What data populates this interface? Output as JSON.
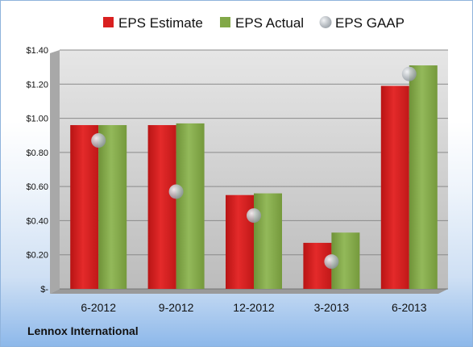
{
  "company": "Lennox International",
  "colors": {
    "estimate": "#d92020",
    "actual": "#82a848",
    "gaap": "#b0b8c0",
    "plot_bg_top": "#eaeaea",
    "plot_bg_bottom": "#bdbdbd"
  },
  "chart_data": {
    "type": "bar",
    "categories": [
      "6-2012",
      "9-2012",
      "12-2012",
      "3-2013",
      "6-2013"
    ],
    "series": [
      {
        "name": "EPS Estimate",
        "kind": "bar",
        "values": [
          0.96,
          0.96,
          0.55,
          0.27,
          1.19
        ]
      },
      {
        "name": "EPS Actual",
        "kind": "bar",
        "values": [
          0.96,
          0.97,
          0.56,
          0.33,
          1.31
        ]
      },
      {
        "name": "EPS GAAP",
        "kind": "scatter",
        "values": [
          0.87,
          0.57,
          0.43,
          0.16,
          1.26
        ]
      }
    ],
    "ylim": [
      0,
      1.4
    ],
    "yticks": [
      0,
      0.2,
      0.4,
      0.6,
      0.8,
      1.0,
      1.2,
      1.4
    ],
    "ytick_labels": [
      "$-",
      "$0.20",
      "$0.40",
      "$0.60",
      "$0.80",
      "$1.00",
      "$1.20",
      "$1.40"
    ],
    "legend_position": "top",
    "grid": true
  }
}
